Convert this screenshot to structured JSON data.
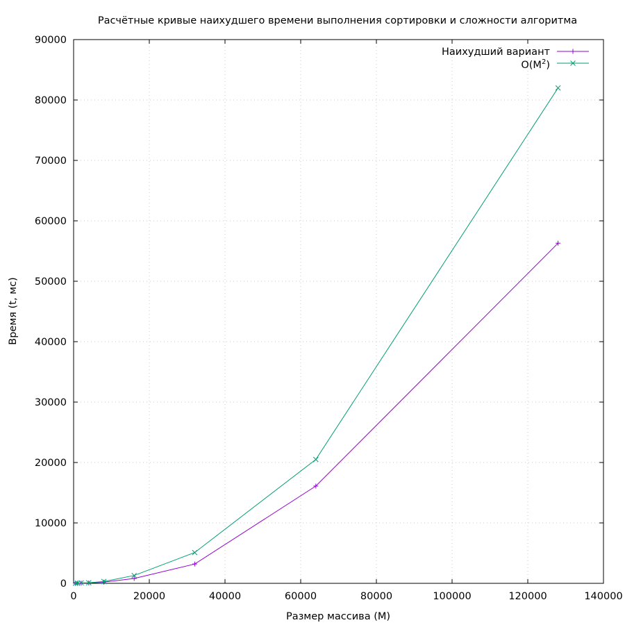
{
  "chart_data": {
    "type": "line",
    "title": "Расчётные кривые наихудшего времени выполнения сортировки и сложности алгоритма",
    "xlabel": "Размер массива (M)",
    "ylabel": "Время (t, мс)",
    "xlim": [
      0,
      140000
    ],
    "ylim": [
      0,
      90000
    ],
    "xticks": [
      0,
      20000,
      40000,
      60000,
      80000,
      100000,
      120000,
      140000
    ],
    "yticks": [
      0,
      10000,
      20000,
      30000,
      40000,
      50000,
      60000,
      70000,
      80000,
      90000
    ],
    "grid": true,
    "legend_position": "top-right",
    "series": [
      {
        "name": "Наихудший вариант",
        "color": "#9400d3",
        "marker": "plus",
        "x": [
          500,
          1000,
          2000,
          4000,
          8000,
          16000,
          32000,
          64000,
          128000
        ],
        "y": [
          0,
          10,
          20,
          60,
          200,
          800,
          3200,
          16100,
          56300
        ]
      },
      {
        "name_base": "O(M",
        "name_sup": "2",
        "name_end": ")",
        "color": "#009e73",
        "marker": "cross",
        "x": [
          500,
          1000,
          2000,
          4000,
          8000,
          16000,
          32000,
          64000,
          128000
        ],
        "y": [
          10,
          30,
          80,
          100,
          300,
          1300,
          5100,
          20500,
          82000
        ]
      }
    ]
  }
}
